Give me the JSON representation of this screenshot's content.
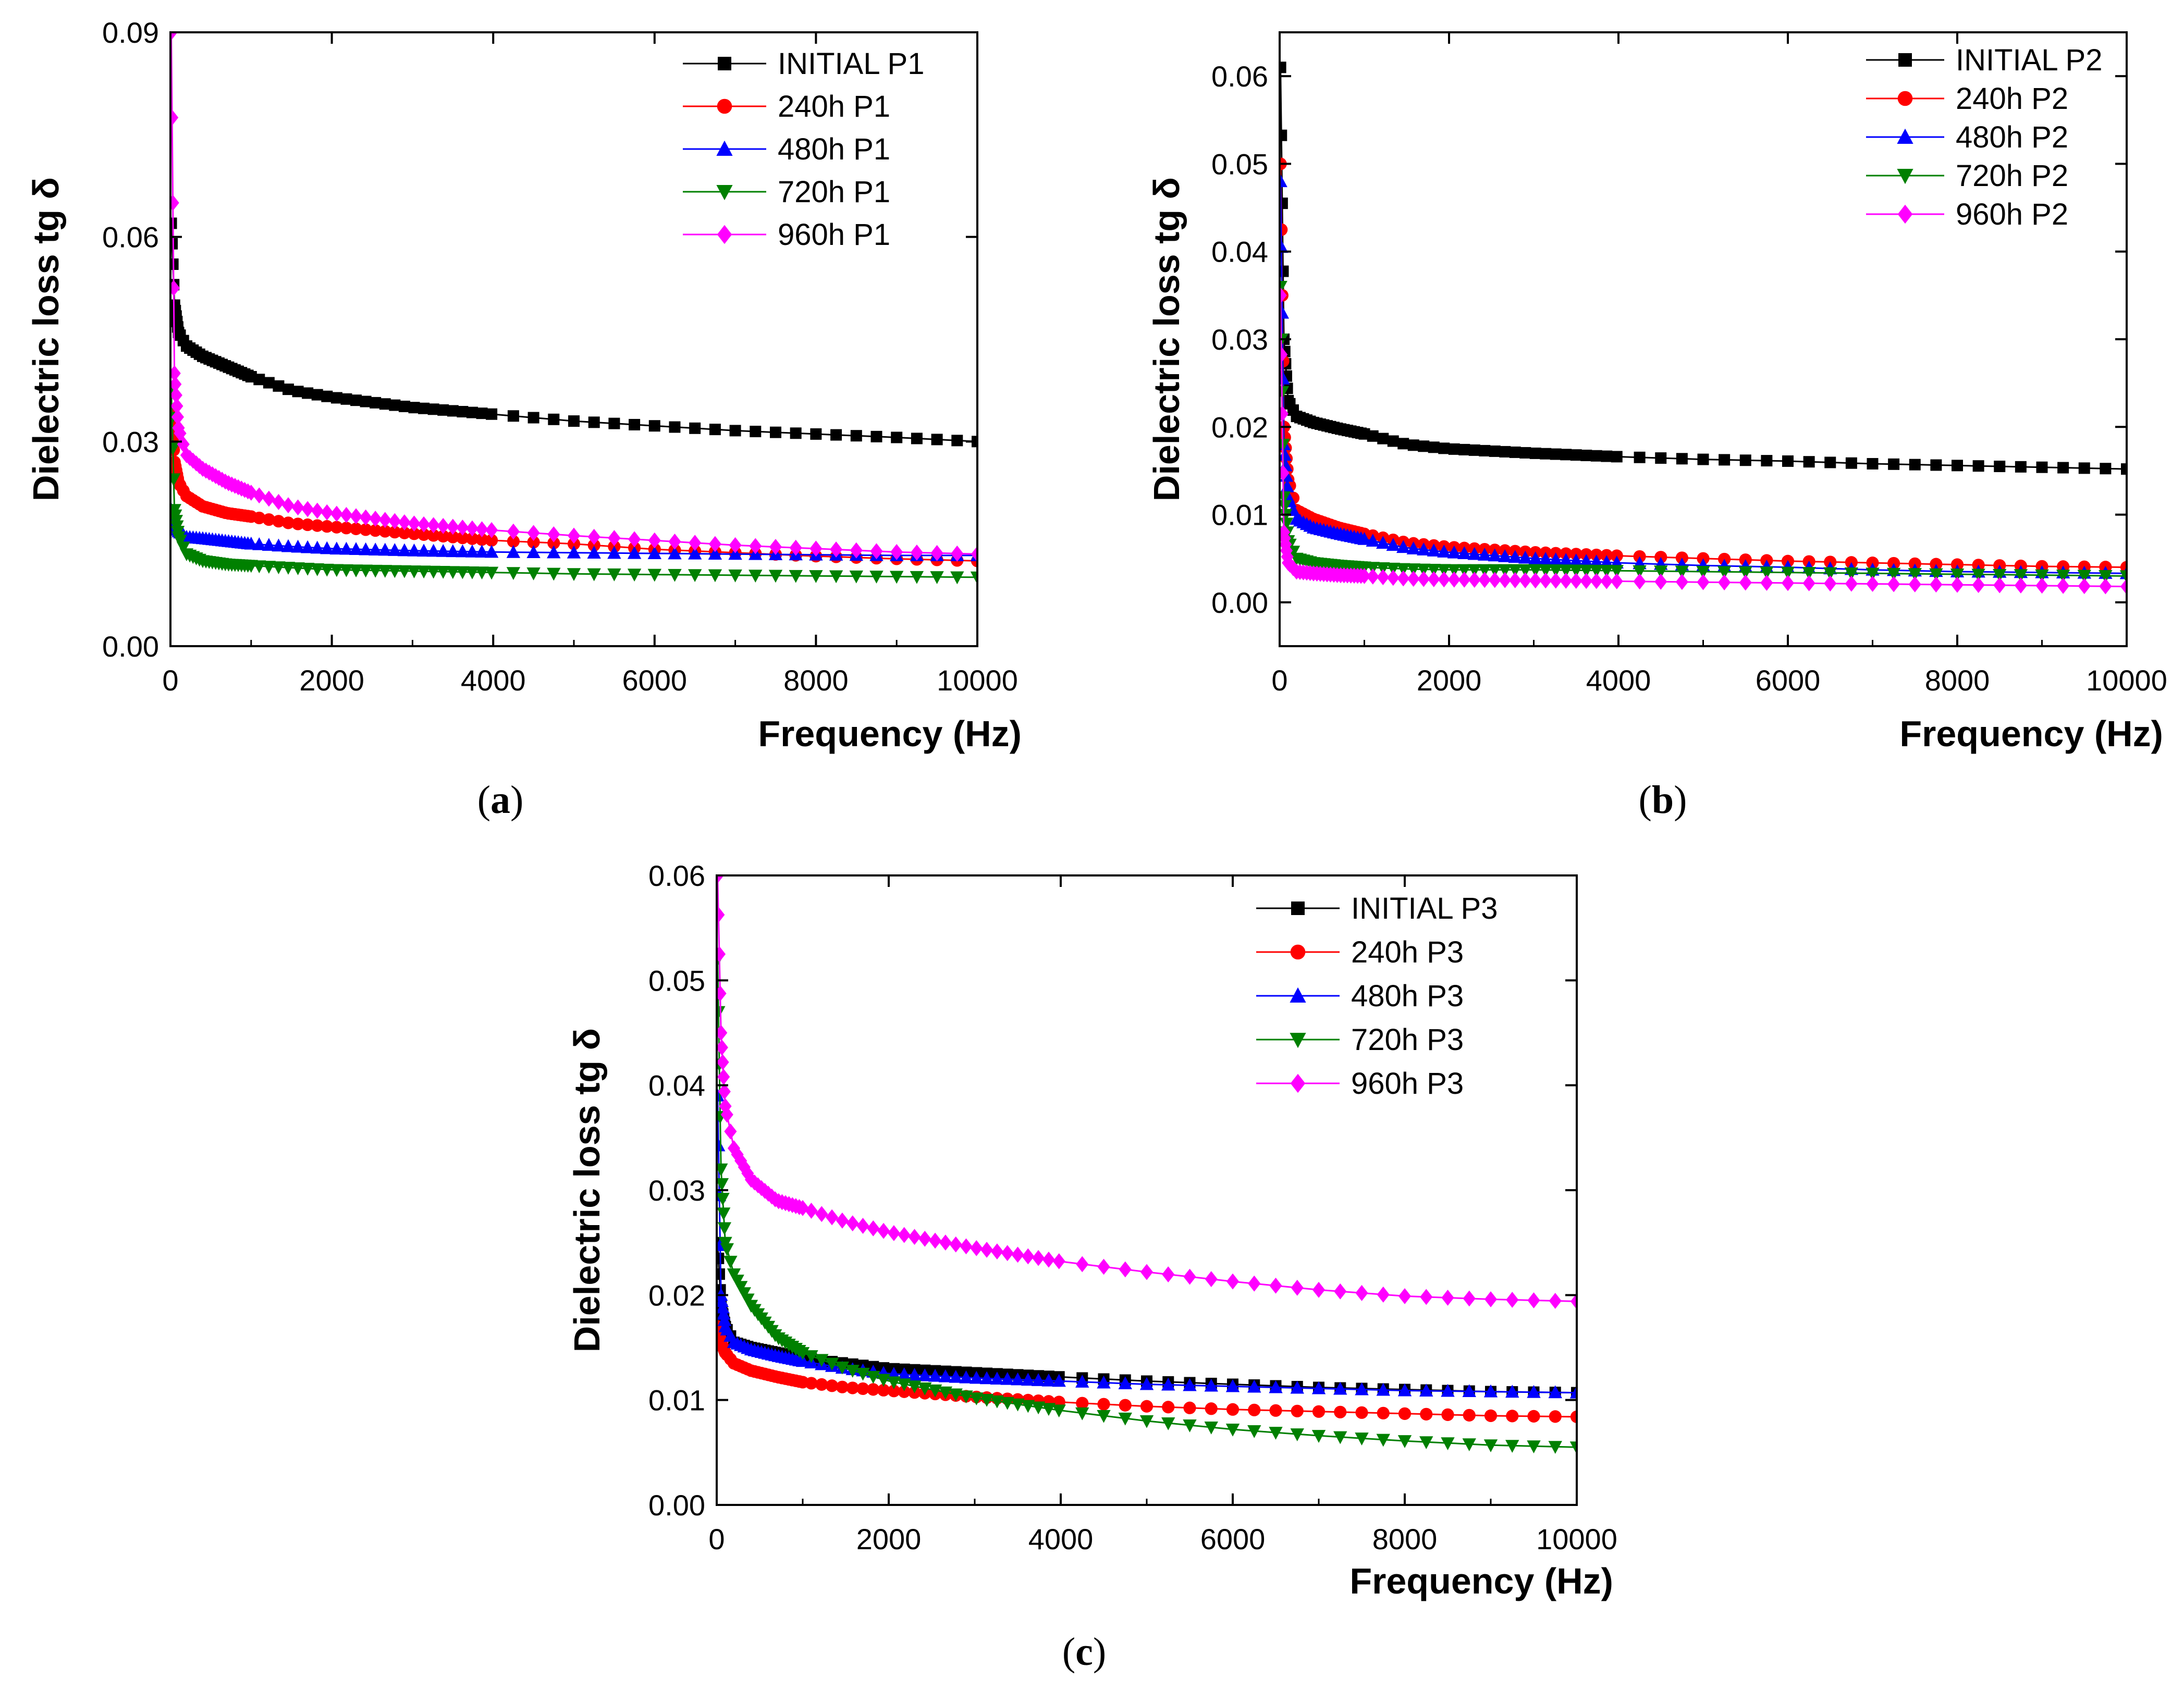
{
  "chart_data": [
    {
      "id": "a",
      "type": "line",
      "caption": "a",
      "xlabel": "Frequency (Hz)",
      "ylabel": "Dielectric loss tg δ",
      "xlim": [
        0,
        10000
      ],
      "ylim": [
        0,
        0.09
      ],
      "xticks": [
        0,
        2000,
        4000,
        6000,
        8000,
        10000
      ],
      "yticks": [
        0.0,
        0.03,
        0.06,
        0.09
      ],
      "ytick_labels": [
        "0.00",
        "0.03",
        "0.06",
        "0.09"
      ],
      "legend_position": "top-right",
      "series": [
        {
          "name": "INITIAL P1",
          "color": "#000000",
          "marker": "square",
          "x": [
            10,
            50,
            100,
            200,
            400,
            700,
            1000,
            1500,
            2000,
            3000,
            4000,
            5000,
            6000,
            7000,
            8000,
            9000,
            10000
          ],
          "y": [
            0.062,
            0.05,
            0.046,
            0.044,
            0.0425,
            0.041,
            0.0395,
            0.0375,
            0.0365,
            0.035,
            0.034,
            0.033,
            0.0323,
            0.0316,
            0.0311,
            0.0306,
            0.03
          ]
        },
        {
          "name": "240h P1",
          "color": "#ff0000",
          "marker": "circle",
          "x": [
            10,
            50,
            100,
            200,
            400,
            700,
            1000,
            1500,
            2000,
            3000,
            4000,
            5000,
            6000,
            7000,
            8000,
            9000,
            10000
          ],
          "y": [
            0.034,
            0.027,
            0.024,
            0.022,
            0.0205,
            0.0195,
            0.019,
            0.018,
            0.0175,
            0.0165,
            0.0155,
            0.015,
            0.0142,
            0.0137,
            0.0132,
            0.0128,
            0.0125
          ]
        },
        {
          "name": "480h P1",
          "color": "#0000ff",
          "marker": "triangle-up",
          "x": [
            10,
            50,
            100,
            200,
            400,
            700,
            1000,
            1500,
            2000,
            3000,
            4000,
            5000,
            6000,
            7000,
            8000,
            9000,
            10000
          ],
          "y": [
            0.02,
            0.018,
            0.0168,
            0.016,
            0.0158,
            0.0154,
            0.015,
            0.0146,
            0.0143,
            0.014,
            0.0138,
            0.0137,
            0.0136,
            0.0135,
            0.0134,
            0.0133,
            0.0133
          ]
        },
        {
          "name": "720h P1",
          "color": "#008000",
          "marker": "triangle-down",
          "x": [
            10,
            50,
            100,
            200,
            400,
            700,
            1000,
            1500,
            2000,
            3000,
            4000,
            5000,
            6000,
            7000,
            8000,
            9000,
            10000
          ],
          "y": [
            0.038,
            0.02,
            0.016,
            0.0135,
            0.0125,
            0.012,
            0.0118,
            0.0115,
            0.0112,
            0.011,
            0.0108,
            0.0106,
            0.0105,
            0.0104,
            0.0103,
            0.0102,
            0.0101
          ]
        },
        {
          "name": "960h P1",
          "color": "#ff00ff",
          "marker": "diamond",
          "x": [
            10,
            50,
            100,
            200,
            400,
            700,
            1000,
            1500,
            2000,
            3000,
            4000,
            5000,
            6000,
            7000,
            8000,
            9000,
            10000
          ],
          "y": [
            0.09,
            0.04,
            0.032,
            0.028,
            0.026,
            0.024,
            0.0225,
            0.0205,
            0.0195,
            0.018,
            0.017,
            0.0162,
            0.0155,
            0.0148,
            0.0143,
            0.0138,
            0.0135
          ]
        }
      ]
    },
    {
      "id": "b",
      "type": "line",
      "caption": "b",
      "xlabel": "Frequency (Hz)",
      "ylabel": "Dielectric loss tg δ",
      "xlim": [
        0,
        10000
      ],
      "ylim": [
        -0.005,
        0.065
      ],
      "xticks": [
        0,
        2000,
        4000,
        6000,
        8000,
        10000
      ],
      "yticks": [
        0.0,
        0.01,
        0.02,
        0.03,
        0.04,
        0.05,
        0.06
      ],
      "ytick_labels": [
        "0.00",
        "0.01",
        "0.02",
        "0.03",
        "0.04",
        "0.05",
        "0.06"
      ],
      "legend_position": "top-right",
      "series": [
        {
          "name": "INITIAL P2",
          "color": "#000000",
          "marker": "square",
          "x": [
            10,
            50,
            100,
            200,
            400,
            700,
            1000,
            1500,
            2000,
            3000,
            4000,
            5000,
            6000,
            7000,
            8000,
            9000,
            10000
          ],
          "y": [
            0.061,
            0.03,
            0.023,
            0.0212,
            0.0205,
            0.0198,
            0.0192,
            0.018,
            0.0175,
            0.017,
            0.0166,
            0.0163,
            0.0161,
            0.0158,
            0.0156,
            0.0154,
            0.0152
          ]
        },
        {
          "name": "240h P2",
          "color": "#ff0000",
          "marker": "circle",
          "x": [
            10,
            50,
            100,
            200,
            400,
            700,
            1000,
            1500,
            2000,
            3000,
            4000,
            5000,
            6000,
            7000,
            8000,
            9000,
            10000
          ],
          "y": [
            0.05,
            0.02,
            0.014,
            0.0105,
            0.0095,
            0.0085,
            0.0078,
            0.0068,
            0.0063,
            0.0057,
            0.0053,
            0.005,
            0.0047,
            0.0045,
            0.0043,
            0.0041,
            0.004
          ]
        },
        {
          "name": "480h P2",
          "color": "#0000ff",
          "marker": "triangle-up",
          "x": [
            10,
            50,
            100,
            200,
            400,
            700,
            1000,
            1500,
            2000,
            3000,
            4000,
            5000,
            6000,
            7000,
            8000,
            9000,
            10000
          ],
          "y": [
            0.048,
            0.018,
            0.012,
            0.0095,
            0.0085,
            0.0078,
            0.0072,
            0.0062,
            0.0057,
            0.005,
            0.0045,
            0.0042,
            0.004,
            0.0037,
            0.0035,
            0.0034,
            0.0033
          ]
        },
        {
          "name": "720h P2",
          "color": "#008000",
          "marker": "triangle-down",
          "x": [
            10,
            50,
            100,
            200,
            400,
            700,
            1000,
            1500,
            2000,
            3000,
            4000,
            5000,
            6000,
            7000,
            8000,
            9000,
            10000
          ],
          "y": [
            0.036,
            0.012,
            0.007,
            0.005,
            0.0045,
            0.0042,
            0.004,
            0.0038,
            0.0037,
            0.0037,
            0.0036,
            0.0035,
            0.0034,
            0.0033,
            0.0032,
            0.0031,
            0.003
          ]
        },
        {
          "name": "960h P2",
          "color": "#ff00ff",
          "marker": "diamond",
          "x": [
            10,
            50,
            100,
            200,
            400,
            700,
            1000,
            1500,
            2000,
            3000,
            4000,
            5000,
            6000,
            7000,
            8000,
            9000,
            10000
          ],
          "y": [
            0.035,
            0.008,
            0.0045,
            0.0035,
            0.0033,
            0.0031,
            0.003,
            0.0027,
            0.0026,
            0.0025,
            0.0024,
            0.0023,
            0.0022,
            0.0021,
            0.002,
            0.0019,
            0.0018
          ]
        }
      ]
    },
    {
      "id": "c",
      "type": "line",
      "caption": "c",
      "xlabel": "Frequency (Hz)",
      "ylabel": "Dielectric loss tg δ",
      "xlim": [
        0,
        10000
      ],
      "ylim": [
        0,
        0.06
      ],
      "xticks": [
        0,
        2000,
        4000,
        6000,
        8000,
        10000
      ],
      "yticks": [
        0.0,
        0.01,
        0.02,
        0.03,
        0.04,
        0.05,
        0.06
      ],
      "ytick_labels": [
        "0.00",
        "0.01",
        "0.02",
        "0.03",
        "0.04",
        "0.05",
        "0.06"
      ],
      "legend_position": "top-right",
      "series": [
        {
          "name": "INITIAL P3",
          "color": "#000000",
          "marker": "square",
          "x": [
            10,
            50,
            100,
            200,
            400,
            700,
            1000,
            1500,
            2000,
            3000,
            4000,
            5000,
            6000,
            7000,
            8000,
            9000,
            10000
          ],
          "y": [
            0.025,
            0.019,
            0.017,
            0.0155,
            0.015,
            0.0145,
            0.014,
            0.0135,
            0.013,
            0.0126,
            0.0122,
            0.0118,
            0.0115,
            0.0112,
            0.011,
            0.0108,
            0.0107
          ]
        },
        {
          "name": "240h P3",
          "color": "#ff0000",
          "marker": "circle",
          "x": [
            10,
            50,
            100,
            200,
            400,
            700,
            1000,
            1500,
            2000,
            3000,
            4000,
            5000,
            6000,
            7000,
            8000,
            9000,
            10000
          ],
          "y": [
            0.017,
            0.0155,
            0.0145,
            0.0135,
            0.0128,
            0.0122,
            0.0117,
            0.0112,
            0.0109,
            0.0103,
            0.0098,
            0.0094,
            0.0091,
            0.0089,
            0.0087,
            0.0085,
            0.0084
          ]
        },
        {
          "name": "480h P3",
          "color": "#0000ff",
          "marker": "triangle-up",
          "x": [
            10,
            50,
            100,
            200,
            400,
            700,
            1000,
            1500,
            2000,
            3000,
            4000,
            5000,
            6000,
            7000,
            8000,
            9000,
            10000
          ],
          "y": [
            0.039,
            0.02,
            0.017,
            0.0155,
            0.0148,
            0.0142,
            0.0137,
            0.013,
            0.0125,
            0.0121,
            0.0118,
            0.0115,
            0.0113,
            0.0111,
            0.0109,
            0.0108,
            0.0107
          ]
        },
        {
          "name": "720h P3",
          "color": "#008000",
          "marker": "triangle-down",
          "x": [
            10,
            50,
            100,
            200,
            400,
            700,
            1000,
            1500,
            2000,
            3000,
            4000,
            5000,
            6000,
            7000,
            8000,
            9000,
            10000
          ],
          "y": [
            0.052,
            0.032,
            0.025,
            0.022,
            0.019,
            0.016,
            0.0145,
            0.013,
            0.0118,
            0.0102,
            0.009,
            0.008,
            0.0072,
            0.0066,
            0.0061,
            0.0057,
            0.0055
          ]
        },
        {
          "name": "960h P3",
          "color": "#ff00ff",
          "marker": "diamond",
          "x": [
            10,
            50,
            100,
            200,
            400,
            700,
            1000,
            1500,
            2000,
            3000,
            4000,
            5000,
            6000,
            7000,
            8000,
            9000,
            10000
          ],
          "y": [
            0.06,
            0.045,
            0.038,
            0.034,
            0.031,
            0.029,
            0.0283,
            0.027,
            0.026,
            0.0245,
            0.0232,
            0.0222,
            0.0213,
            0.0205,
            0.0199,
            0.0196,
            0.0194
          ]
        }
      ]
    }
  ]
}
